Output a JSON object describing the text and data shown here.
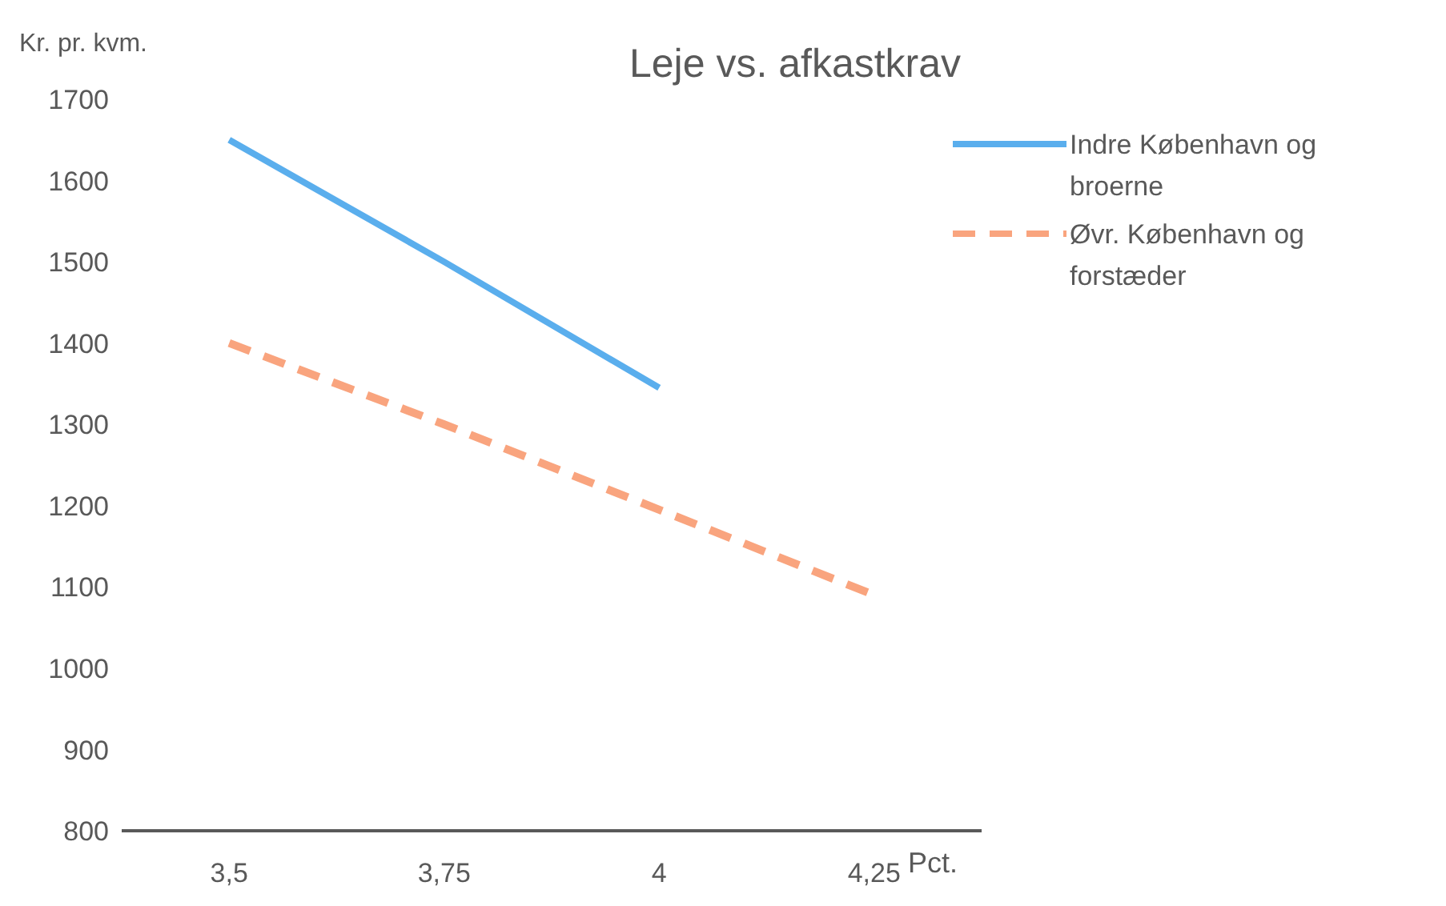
{
  "chart_data": {
    "type": "line",
    "title": "Leje vs. afkastkrav",
    "xlabel": "Pct.",
    "ylabel": "Kr. pr. kvm.",
    "categories": [
      "3,5",
      "3,75",
      "4",
      "4,25"
    ],
    "series": [
      {
        "name": "Indre København og broerne",
        "color": "#5aaeed",
        "line_style": "solid",
        "values": [
          1650,
          1500,
          1345,
          null
        ]
      },
      {
        "name": "Øvr. København og forstæder",
        "color": "#f9a47e",
        "line_style": "dashed",
        "values": [
          1400,
          1300,
          1195,
          1090
        ]
      }
    ],
    "ylim": [
      800,
      1700
    ],
    "yticks": [
      800,
      900,
      1000,
      1100,
      1200,
      1300,
      1400,
      1500,
      1600,
      1700
    ],
    "grid": false,
    "legend": "top right",
    "marker": "none"
  }
}
